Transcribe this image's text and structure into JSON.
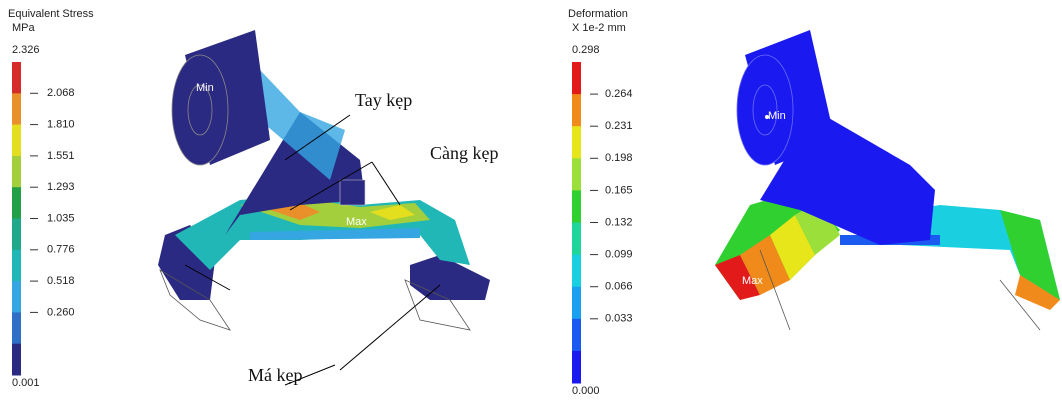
{
  "left_panel": {
    "legend": {
      "title": "Equivalent Stress",
      "unit": "MPa",
      "ticks": [
        "2.326",
        "2.068",
        "1.810",
        "1.551",
        "1.293",
        "1.035",
        "0.776",
        "0.518",
        "0.260",
        "0.001"
      ],
      "colors": [
        "#d62b2b",
        "#e9902b",
        "#e4df1e",
        "#a3cf3c",
        "#22a047",
        "#1fa88a",
        "#22b7b7",
        "#35a6e2",
        "#2f6fc8",
        "#2b2a82"
      ]
    },
    "min_label": "Min",
    "max_label": "Max",
    "annotations": [
      "Tay kẹp",
      "Càng kẹp",
      "Má kẹp"
    ]
  },
  "right_panel": {
    "legend": {
      "title": "Deformation",
      "unit": "X 1e-2 mm",
      "ticks": [
        "0.298",
        "0.264",
        "0.231",
        "0.198",
        "0.165",
        "0.132",
        "0.099",
        "0.066",
        "0.033",
        "0.000"
      ],
      "colors": [
        "#e31a1a",
        "#f08a1a",
        "#e6e61a",
        "#9be03a",
        "#2fd02f",
        "#1fd59a",
        "#1ad0e0",
        "#1aa0f0",
        "#1a5af0",
        "#1a1af0"
      ]
    },
    "min_label": "Min",
    "max_label": "Max"
  }
}
